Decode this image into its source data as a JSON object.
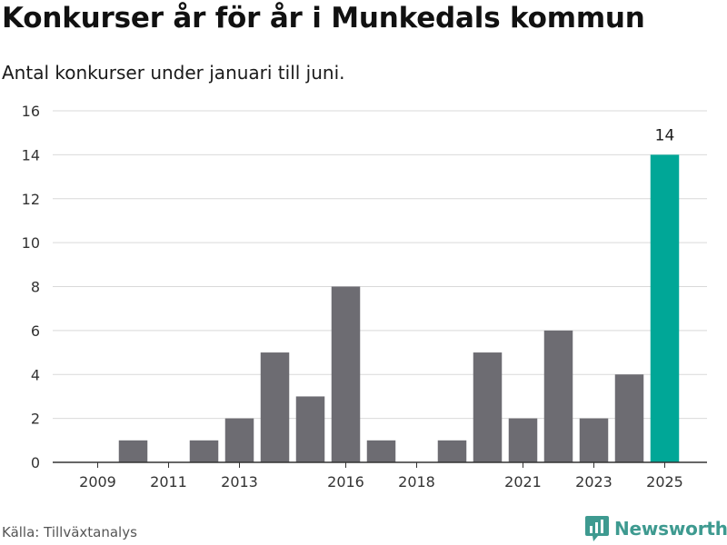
{
  "header": {
    "title": "Konkurser år för år i Munkedals kommun",
    "subtitle": "Antal konkurser under januari till juni."
  },
  "footer": {
    "source": "Källa: Tillväxtanalys",
    "brand": "Newsworthy",
    "brand_icon": "newsworthy-logo-icon"
  },
  "colors": {
    "bar": "#6d6c72",
    "highlight": "#00a797",
    "grid": "#d9d9d9",
    "axis": "#333333",
    "brand": "#3e9a90"
  },
  "chart_data": {
    "type": "bar",
    "categories": [
      "2008",
      "2009",
      "2010",
      "2011",
      "2012",
      "2013",
      "2014",
      "2015",
      "2016",
      "2017",
      "2018",
      "2019",
      "2020",
      "2021",
      "2022",
      "2023",
      "2024",
      "2025"
    ],
    "values": [
      0,
      0,
      1,
      0,
      1,
      2,
      5,
      3,
      8,
      1,
      0,
      1,
      5,
      2,
      6,
      2,
      4,
      14
    ],
    "x_tick_labels": [
      "2009",
      "2011",
      "2013",
      "2016",
      "2018",
      "2021",
      "2023",
      "2025"
    ],
    "highlight_category": "2025",
    "data_labels": [
      {
        "category": "2025",
        "value": 14
      }
    ],
    "ylim": [
      0,
      16
    ],
    "y_ticks": [
      0,
      2,
      4,
      6,
      8,
      10,
      12,
      14,
      16
    ],
    "xlabel": "",
    "ylabel": "",
    "grid": true,
    "legend": "none"
  }
}
